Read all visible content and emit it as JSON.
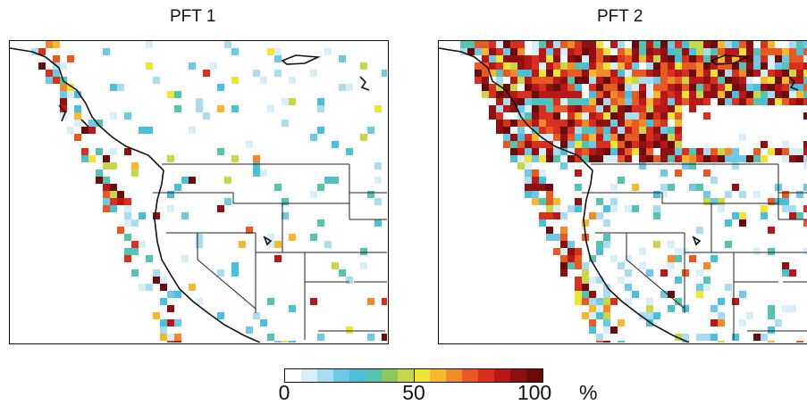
{
  "panels": [
    {
      "title": "PFT 1",
      "density": "sparse"
    },
    {
      "title": "PFT 2",
      "density": "dense"
    }
  ],
  "colorbar": {
    "ticks": [
      "0",
      "50",
      "100"
    ],
    "unit": "%",
    "range": [
      0,
      100
    ],
    "colors": [
      "#ffffff",
      "#d8eef8",
      "#a9dcef",
      "#6ec8e6",
      "#4bbfd9",
      "#55c3b0",
      "#8dc85a",
      "#c6d84a",
      "#f0e536",
      "#f6b82e",
      "#f08a2a",
      "#e85a24",
      "#d8301e",
      "#b81818",
      "#8e1010",
      "#6a0c0c"
    ]
  }
}
